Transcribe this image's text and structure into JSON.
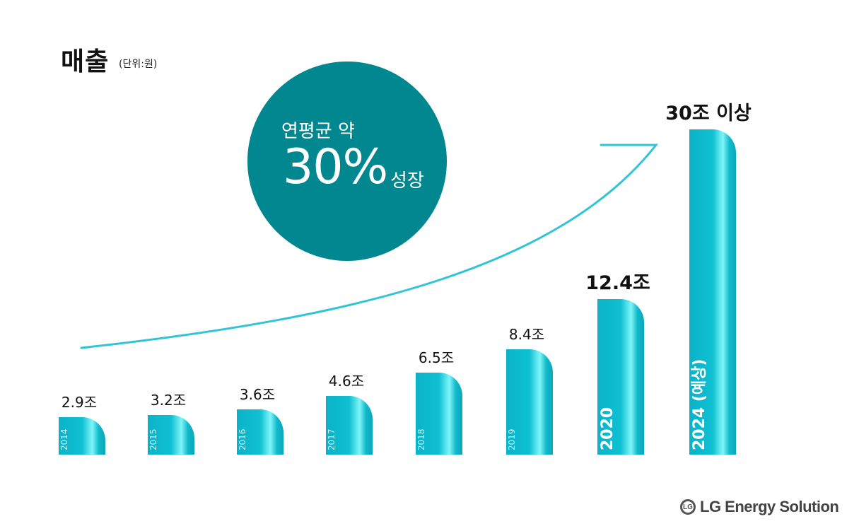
{
  "header": {
    "title": "매출",
    "unit": "(단위:원)"
  },
  "callout": {
    "line1": "연평균 약",
    "big": "30%",
    "suffix": "성장"
  },
  "chart_data": {
    "type": "bar",
    "categories": [
      "2014",
      "2015",
      "2016",
      "2017",
      "2018",
      "2019",
      "2020",
      "2024 (예상)"
    ],
    "values": [
      2.9,
      3.2,
      3.6,
      4.6,
      6.5,
      8.4,
      12.4,
      30
    ],
    "value_labels": [
      "2.9조",
      "3.2조",
      "3.6조",
      "4.6조",
      "6.5조",
      "8.4조",
      "12.4조",
      "30조 이상"
    ],
    "title": "매출",
    "xlabel": "",
    "ylabel": "",
    "grid": false,
    "colors": {
      "bar_dark": "#0bb3c8",
      "bar_light": "#7ff4f8",
      "curve": "#30c4d6",
      "circle": "#00878f"
    }
  },
  "footer": {
    "logo_mark": "LG",
    "logo_text": "LG Energy Solution"
  }
}
